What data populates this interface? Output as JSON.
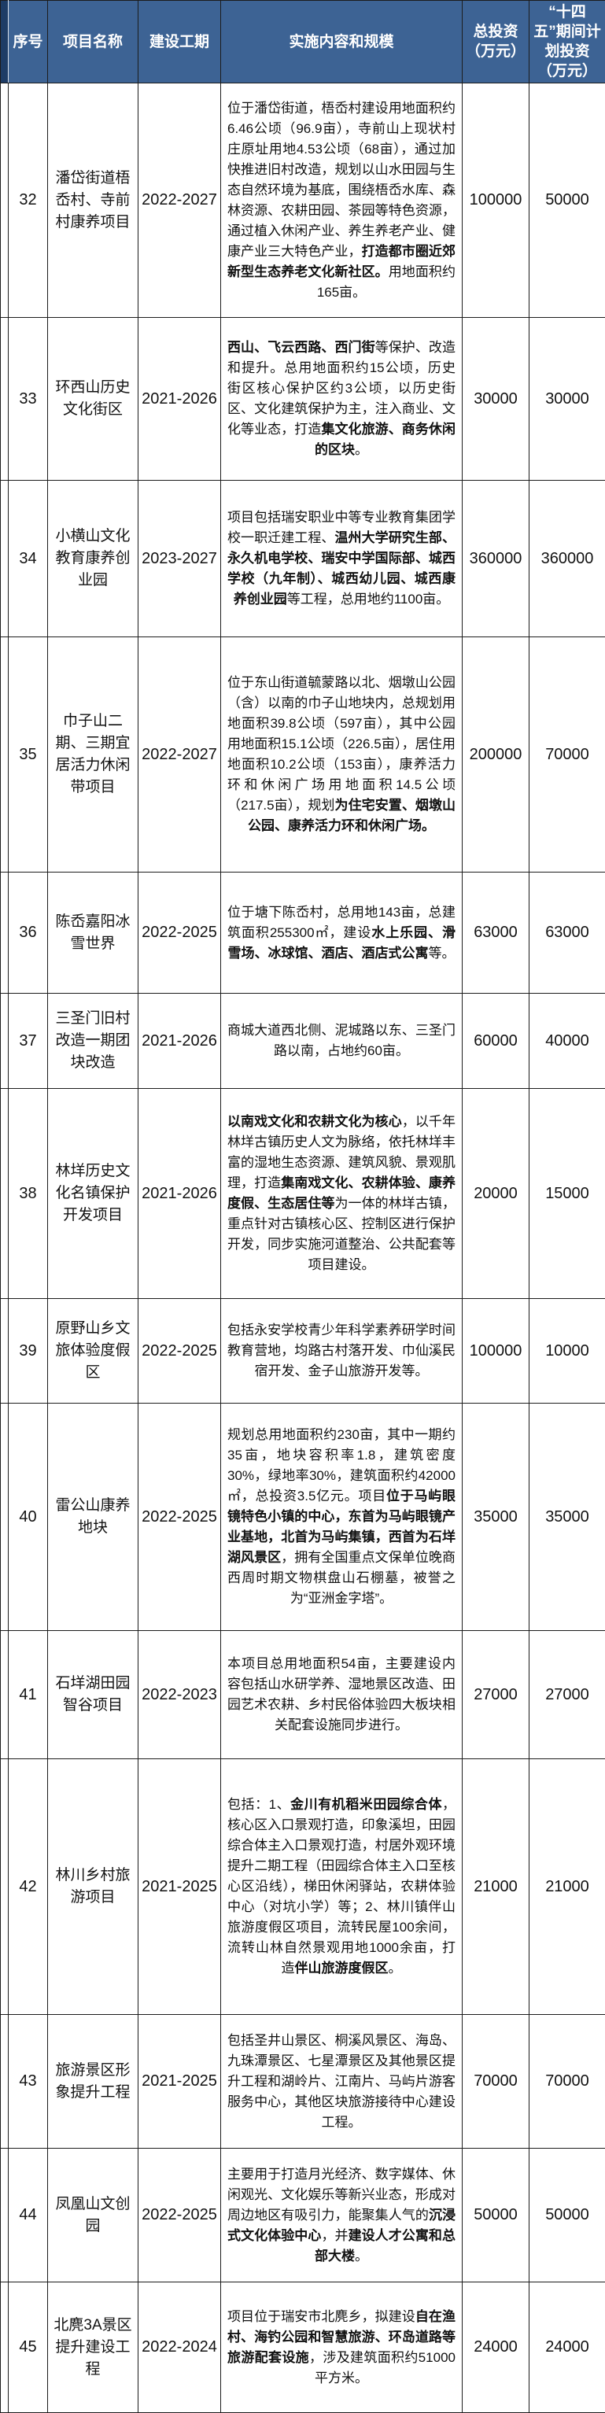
{
  "colors": {
    "header_background": "#3d6394",
    "header_left_strip": "#1e3c66",
    "header_text": "#ffffff",
    "border": "#1c1c1c",
    "body_text": "#111111"
  },
  "table": {
    "headers": {
      "seq": "序号",
      "name": "项目名称",
      "period": "建设工期",
      "content": "实施内容和规模",
      "total": "总投资（万元）",
      "plan": "“十四五”期间计划投资（万元）"
    },
    "rows": [
      {
        "seq": "32",
        "name": "潘岱街道梧岙村、寺前村康养项目",
        "period": "2022-2027",
        "content": [
          {
            "t": "位于潘岱街道，梧岙村建设用地面积约6.46公顷（96.9亩），寺前山上现状村庄原址用地4.53公顷（68亩），通过加快推进旧村改造，规划以山水田园与生态自然环境为基底，围绕梧岙水库、森林资源、农耕田园、茶园等特色资源，通过植入休闲产业、养生养老产业、健康产业三大特色产业，",
            "b": false
          },
          {
            "t": "打造都市圈近郊新型生态养老文化新社区。",
            "b": true
          },
          {
            "t": "用地面积约165亩。",
            "b": false
          }
        ],
        "total": "100000",
        "plan": "50000"
      },
      {
        "seq": "33",
        "name": "环西山历史文化街区",
        "period": "2021-2026",
        "content": [
          {
            "t": "西山、飞云西路、西门街",
            "b": true
          },
          {
            "t": "等保护、改造和提升。总用地面积约15公顷，历史街区核心保护区约3公顷，以历史街区、文化建筑保护为主，注入商业、文化等业态，打造",
            "b": false
          },
          {
            "t": "集文化旅游、商务休闲的区块",
            "b": true
          },
          {
            "t": "。",
            "b": false
          }
        ],
        "total": "30000",
        "plan": "30000"
      },
      {
        "seq": "34",
        "name": "小横山文化教育康养创业园",
        "period": "2023-2027",
        "content": [
          {
            "t": "项目包括瑞安职业中等专业教育集团学校一职迁建工程、",
            "b": false
          },
          {
            "t": "温州大学研究生部、永久机电学校、瑞安中学国际部、城西学校（九年制）、城西幼儿园、城西康养创业园",
            "b": true
          },
          {
            "t": "等工程，总用地约1100亩。",
            "b": false
          }
        ],
        "total": "360000",
        "plan": "360000"
      },
      {
        "seq": "35",
        "name": "巾子山二期、三期宜居活力休闲带项目",
        "period": "2022-2027",
        "content": [
          {
            "t": "位于东山街道毓蒙路以北、烟墩山公园（含）以南的巾子山地块内，总规划用地面积39.8公顷（597亩），其中公园用地面积15.1公顷（226.5亩），居住用地面积10.2公顷（153亩），康养活力环和休闲广场用地面积14.5公顷（217.5亩），规划",
            "b": false
          },
          {
            "t": "为住宅安置、烟墩山公园、康养活力环和休闲广场。",
            "b": true
          }
        ],
        "total": "200000",
        "plan": "70000"
      },
      {
        "seq": "36",
        "name": "陈岙嘉阳冰雪世界",
        "period": "2022-2025",
        "content": [
          {
            "t": "位于塘下陈岙村，总用地143亩，总建筑面积255300㎡，建设",
            "b": false
          },
          {
            "t": "水上乐园、滑雪场、冰球馆、酒店、酒店式公寓",
            "b": true
          },
          {
            "t": "等。",
            "b": false
          }
        ],
        "total": "63000",
        "plan": "63000"
      },
      {
        "seq": "37",
        "name": "三圣门旧村改造一期团块改造",
        "period": "2021-2026",
        "content": [
          {
            "t": "商城大道西北侧、泥城路以东、三圣门路以南，占地约60亩。",
            "b": false
          }
        ],
        "total": "60000",
        "plan": "40000"
      },
      {
        "seq": "38",
        "name": "林垟历史文化名镇保护开发项目",
        "period": "2021-2026",
        "content": [
          {
            "t": "以南戏文化和农耕文化为核心",
            "b": true
          },
          {
            "t": "，以千年林垟古镇历史人文为脉络，依托林垟丰富的湿地生态资源、建筑风貌、景观肌理，打造",
            "b": false
          },
          {
            "t": "集南戏文化、农耕体验、康养度假、生态居住等",
            "b": true
          },
          {
            "t": "为一体的林垟古镇，重点针对古镇核心区、控制区进行保护开发，同步实施河道整治、公共配套等项目建设。",
            "b": false
          }
        ],
        "total": "20000",
        "plan": "15000"
      },
      {
        "seq": "39",
        "name": "原野山乡文旅体验度假区",
        "period": "2022-2025",
        "content": [
          {
            "t": "包括永安学校青少年科学素养研学时间教育营地，均路古村落开发、巾仙溪民宿开发、金子山旅游开发等。",
            "b": false
          }
        ],
        "total": "100000",
        "plan": "10000"
      },
      {
        "seq": "40",
        "name": "雷公山康养地块",
        "period": "2022-2025",
        "content": [
          {
            "t": "规划总用地面积约230亩，其中一期约35亩，地块容积率1.8，建筑密度30%，绿地率30%，建筑面积约42000㎡，总投资3.5亿元。项目",
            "b": false
          },
          {
            "t": "位于马屿眼镜特色小镇的中心，东首为马屿眼镜产业基地，北首为马屿集镇，西首为石垟湖风景区",
            "b": true
          },
          {
            "t": "，拥有全国重点文保单位晚商西周时期文物棋盘山石棚墓，被誉之为“亚洲金字塔”。",
            "b": false
          }
        ],
        "total": "35000",
        "plan": "35000"
      },
      {
        "seq": "41",
        "name": "石垟湖田园智谷项目",
        "period": "2022-2023",
        "content": [
          {
            "t": "本项目总用地面积54亩，主要建设内容包括山水研学养、湿地景区改造、田园艺术农耕、乡村民俗体验四大板块相关配套设施同步进行。",
            "b": false
          }
        ],
        "total": "27000",
        "plan": "27000"
      },
      {
        "seq": "42",
        "name": "林川乡村旅游项目",
        "period": "2021-2025",
        "content": [
          {
            "t": "包括：1、",
            "b": false
          },
          {
            "t": "金川有机稻米田园综合体",
            "b": true
          },
          {
            "t": "，核心区入口景观打造，印象溪坦，田园综合体主入口景观打造，村居外观环境提升二期工程（田园综合体主入口至核心区沿线），梯田休闲驿站，农耕体验中心（对坑小学）等；2、林川镇伴山旅游度假区项目，流转民屋100余间，流转山林自然景观用地1000余亩，打造",
            "b": false
          },
          {
            "t": "伴山旅游度假区",
            "b": true
          },
          {
            "t": "。",
            "b": false
          }
        ],
        "total": "21000",
        "plan": "21000"
      },
      {
        "seq": "43",
        "name": "旅游景区形象提升工程",
        "period": "2021-2025",
        "content": [
          {
            "t": "包括圣井山景区、桐溪风景区、海岛、九珠潭景区、七星潭景区及其他景区提升工程和湖岭片、江南片、马屿片游客服务中心，其他区块旅游接待中心建设工程。",
            "b": false
          }
        ],
        "total": "70000",
        "plan": "70000"
      },
      {
        "seq": "44",
        "name": "凤凰山文创园",
        "period": "2022-2025",
        "content": [
          {
            "t": "主要用于打造月光经济、数字媒体、休闲观光、文化娱乐等新兴业态，形成对周边地区有吸引力，能聚集人气的",
            "b": false
          },
          {
            "t": "沉浸式文化体验中心",
            "b": true
          },
          {
            "t": "，并",
            "b": false
          },
          {
            "t": "建设人才公寓和总部大楼",
            "b": true
          },
          {
            "t": "。",
            "b": false
          }
        ],
        "total": "50000",
        "plan": "50000"
      },
      {
        "seq": "45",
        "name": "北麂3A景区提升建设工程",
        "period": "2022-2024",
        "content": [
          {
            "t": "项目位于瑞安市北麂乡，拟建设",
            "b": false
          },
          {
            "t": "自在渔村、海钓公园和智慧旅游、环岛道路等旅游配套设施",
            "b": true
          },
          {
            "t": "，涉及建筑面积约51000平方米。",
            "b": false
          }
        ],
        "total": "24000",
        "plan": "24000"
      }
    ]
  }
}
